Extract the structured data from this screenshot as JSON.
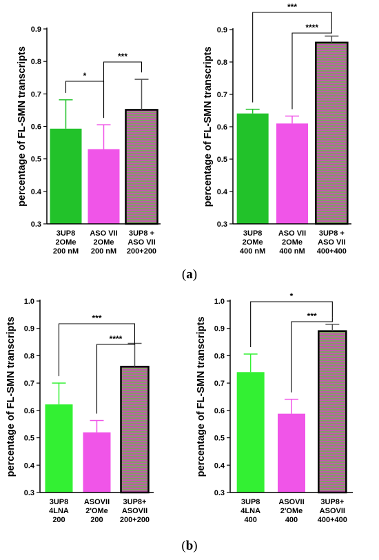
{
  "figure": {
    "panel_labels": [
      {
        "open": "(",
        "letter": "a",
        "close": ")"
      },
      {
        "open": "(",
        "letter": "b",
        "close": ")"
      }
    ]
  },
  "colors": {
    "green": "#22c22a",
    "bright_green": "#33f033",
    "magenta": "#f055e8",
    "stripe_a": "#c259b0",
    "stripe_b": "#80a062",
    "axis": "#000000"
  },
  "chart_data": [
    {
      "type": "bar",
      "ylabel": "percentage of FL-SMN transcripts",
      "ylim": [
        0.3,
        0.9
      ],
      "yticks": [
        "0.3",
        "0.4",
        "0.5",
        "0.6",
        "0.7",
        "0.8",
        "0.9"
      ],
      "categories": [
        [
          "3UP8",
          "2OMe",
          "200 nM"
        ],
        [
          "ASO VII",
          "2OMe",
          "200 nM"
        ],
        [
          "3UP8 +",
          "ASO VII",
          "200+200"
        ]
      ],
      "values": [
        0.593,
        0.53,
        0.651
      ],
      "errors": [
        0.089,
        0.075,
        0.094
      ],
      "fills": [
        "green",
        "magenta",
        "striped"
      ],
      "significance": [
        {
          "from": 0,
          "to": 1,
          "label": "*"
        },
        {
          "from": 1,
          "to": 2,
          "label": "***"
        }
      ]
    },
    {
      "type": "bar",
      "ylabel": "percentage of FL-SMN transcripts",
      "ylim": [
        0.3,
        0.9
      ],
      "yticks": [
        "0.3",
        "0.4",
        "0.5",
        "0.6",
        "0.7",
        "0.8",
        "0.9"
      ],
      "categories": [
        [
          "3UP8",
          "2OMe",
          "400 nM"
        ],
        [
          "ASO VII",
          "2OMe",
          "400 nM"
        ],
        [
          "3UP8 +",
          "ASO VII",
          "400+400"
        ]
      ],
      "values": [
        0.641,
        0.61,
        0.86
      ],
      "errors": [
        0.013,
        0.023,
        0.02
      ],
      "fills": [
        "green",
        "magenta",
        "striped"
      ],
      "significance": [
        {
          "from": 1,
          "to": 2,
          "label": "****"
        },
        {
          "from": 0,
          "to": 2,
          "label": "***"
        }
      ]
    },
    {
      "type": "bar",
      "ylabel": "percentage of FL-SMN transcripts",
      "ylim": [
        0.3,
        1.0
      ],
      "yticks": [
        "0.3",
        "0.4",
        "0.5",
        "0.6",
        "0.7",
        "0.8",
        "0.9",
        "1.0"
      ],
      "categories": [
        [
          "3UP8",
          "4LNA",
          "200"
        ],
        [
          "ASOVII",
          "2'OMe",
          "200"
        ],
        [
          "3UP8+",
          "ASOVII",
          "200+200"
        ]
      ],
      "values": [
        0.622,
        0.52,
        0.76
      ],
      "errors": [
        0.078,
        0.043,
        0.085
      ],
      "fills": [
        "bright_green",
        "magenta",
        "striped"
      ],
      "significance": [
        {
          "from": 1,
          "to": 2,
          "label": "****"
        },
        {
          "from": 0,
          "to": 2,
          "label": "***"
        }
      ]
    },
    {
      "type": "bar",
      "ylabel": "percentage of FL-SMN transcripts",
      "ylim": [
        0.3,
        1.0
      ],
      "yticks": [
        "0.3",
        "0.4",
        "0.5",
        "0.6",
        "0.7",
        "0.8",
        "0.9",
        "1.0"
      ],
      "categories": [
        [
          "3UP8",
          "4LNA",
          "400"
        ],
        [
          "ASOVII",
          "2'OMe",
          "400"
        ],
        [
          "3UP8+",
          "ASOVII",
          "400+400"
        ]
      ],
      "values": [
        0.74,
        0.588,
        0.89
      ],
      "errors": [
        0.066,
        0.053,
        0.025
      ],
      "fills": [
        "bright_green",
        "magenta",
        "striped"
      ],
      "significance": [
        {
          "from": 1,
          "to": 2,
          "label": "***"
        },
        {
          "from": 0,
          "to": 2,
          "label": "*"
        }
      ]
    }
  ]
}
